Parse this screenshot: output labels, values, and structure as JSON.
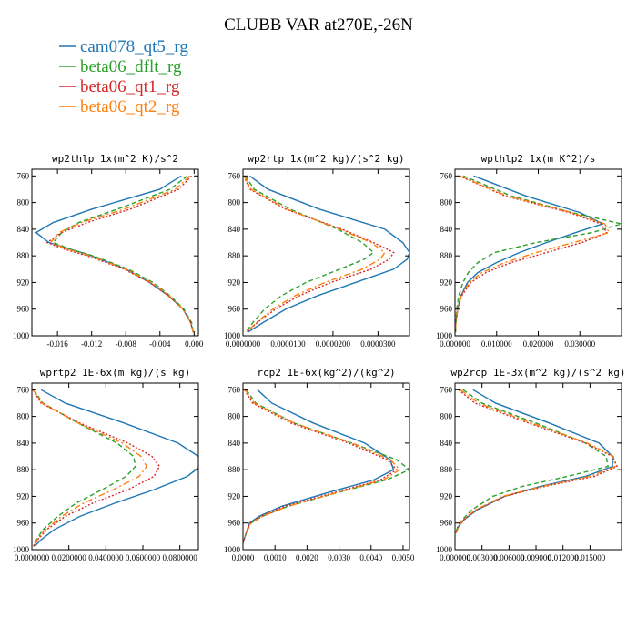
{
  "figure": {
    "title": "CLUBB VAR at270E,-26N"
  },
  "legend": [
    {
      "name": "cam078_qt5_rg",
      "color": "#1f77b4",
      "dash": "solid"
    },
    {
      "name": "beta06_dflt_rg",
      "color": "#2ca02c",
      "dash": "dash"
    },
    {
      "name": "beta06_qt1_rg",
      "color": "#d62728",
      "dash": "dot"
    },
    {
      "name": "beta06_qt2_rg",
      "color": "#ff7f0e",
      "dash": "dashdot"
    }
  ],
  "chart_data": [
    {
      "type": "line",
      "title": "wp2thlp  1x(m^2 K)/s^2",
      "xlim": [
        -0.019,
        0.0005
      ],
      "ylim": [
        1000,
        750
      ],
      "xticks": [
        -0.016,
        -0.012,
        -0.008,
        -0.004,
        0.0
      ],
      "xticklabels": [
        "-0.016",
        "-0.012",
        "-0.008",
        "-0.004",
        "0.000"
      ],
      "yticks": [
        760,
        800,
        840,
        880,
        920,
        960,
        1000
      ],
      "y": [
        760,
        780,
        810,
        830,
        845,
        860,
        870,
        880,
        900,
        920,
        940,
        960,
        980,
        995
      ],
      "series": [
        {
          "name": "cam078_qt5_rg",
          "x": [
            -0.0015,
            -0.004,
            -0.012,
            -0.0165,
            -0.0185,
            -0.017,
            -0.0145,
            -0.012,
            -0.008,
            -0.0052,
            -0.003,
            -0.0013,
            -0.0004,
            -0.0001
          ]
        },
        {
          "name": "beta06_dflt_rg",
          "x": [
            -0.0008,
            -0.0028,
            -0.009,
            -0.0135,
            -0.0155,
            -0.0165,
            -0.0145,
            -0.0118,
            -0.0077,
            -0.0048,
            -0.0028,
            -0.0012,
            -0.0003,
            -0.0001
          ]
        },
        {
          "name": "beta06_qt1_rg",
          "x": [
            -0.0003,
            -0.0018,
            -0.0075,
            -0.0125,
            -0.0155,
            -0.0172,
            -0.0152,
            -0.0125,
            -0.0082,
            -0.0052,
            -0.003,
            -0.0013,
            -0.0004,
            -0.0001
          ]
        },
        {
          "name": "beta06_qt2_rg",
          "x": [
            -0.0005,
            -0.0022,
            -0.0082,
            -0.0132,
            -0.0158,
            -0.0168,
            -0.0148,
            -0.0122,
            -0.008,
            -0.005,
            -0.0029,
            -0.0013,
            -0.0004,
            -0.0001
          ]
        }
      ]
    },
    {
      "type": "line",
      "title": "wp2rtp  1x(m^2 kg)/(s^2 kg)",
      "xlim": [
        0.0,
        3.7e-05
      ],
      "ylim": [
        1000,
        750
      ],
      "xticks": [
        0.0,
        1e-05,
        2e-05,
        3e-05
      ],
      "xticklabels": [
        "0.0000000",
        "0.0000100",
        "0.0000200",
        "0.0000300"
      ],
      "yticks": [
        760,
        800,
        840,
        880,
        920,
        960,
        1000
      ],
      "y": [
        760,
        780,
        810,
        840,
        860,
        875,
        885,
        900,
        920,
        940,
        960,
        980,
        995
      ],
      "series": [
        {
          "name": "cam078_qt5_rg",
          "x": [
            1.5e-06,
            5.5e-06,
            1.7e-05,
            3.15e-05,
            3.55e-05,
            3.7e-05,
            3.65e-05,
            3.35e-05,
            2.5e-05,
            1.65e-05,
            9.5e-06,
            4.5e-06,
            1e-06
          ]
        },
        {
          "name": "beta06_dflt_rg",
          "x": [
            5e-07,
            2.5e-06,
            1.05e-05,
            2.1e-05,
            2.65e-05,
            2.9e-05,
            2.7e-05,
            2.15e-05,
            1.4e-05,
            8.5e-06,
            4.8e-06,
            2.2e-06,
            6e-07
          ]
        },
        {
          "name": "beta06_qt1_rg",
          "x": [
            2e-07,
            1.5e-06,
            9.5e-06,
            2.2e-05,
            2.9e-05,
            3.35e-05,
            3.25e-05,
            2.85e-05,
            1.95e-05,
            1.25e-05,
            7.2e-06,
            3.2e-06,
            8e-07
          ]
        },
        {
          "name": "beta06_qt2_rg",
          "x": [
            3e-07,
            1.8e-06,
            9.8e-06,
            2.15e-05,
            2.85e-05,
            3.15e-05,
            3.05e-05,
            2.65e-05,
            1.82e-05,
            1.15e-05,
            6.6e-06,
            3e-06,
            7e-07
          ]
        }
      ]
    },
    {
      "type": "line",
      "title": "wpthlp2  1x(m K^2)/s",
      "xlim": [
        0.0,
        0.04
      ],
      "ylim": [
        1000,
        750
      ],
      "xticks": [
        0.0,
        0.01,
        0.02,
        0.03
      ],
      "xticklabels": [
        "0.000000",
        "0.010000",
        "0.020000",
        "0.030000"
      ],
      "yticks": [
        760,
        800,
        840,
        880,
        920,
        960,
        1000
      ],
      "y": [
        760,
        790,
        815,
        832,
        845,
        860,
        875,
        890,
        905,
        920,
        940,
        960,
        980,
        995
      ],
      "series": [
        {
          "name": "cam078_qt5_rg",
          "x": [
            0.0045,
            0.017,
            0.03,
            0.0355,
            0.029,
            0.022,
            0.0155,
            0.01,
            0.0055,
            0.003,
            0.0014,
            0.0006,
            0.0002,
            0.0001
          ]
        },
        {
          "name": "beta06_dflt_rg",
          "x": [
            0.002,
            0.0135,
            0.028,
            0.04,
            0.033,
            0.0195,
            0.0095,
            0.0055,
            0.0032,
            0.0019,
            0.0009,
            0.0004,
            0.0002,
            0.0001
          ]
        },
        {
          "name": "beta06_qt1_rg",
          "x": [
            0.001,
            0.012,
            0.0275,
            0.035,
            0.0365,
            0.0305,
            0.022,
            0.0135,
            0.0075,
            0.0038,
            0.0016,
            0.0007,
            0.0002,
            0.0001
          ]
        },
        {
          "name": "beta06_qt2_rg",
          "x": [
            0.0012,
            0.0125,
            0.028,
            0.036,
            0.037,
            0.0285,
            0.0195,
            0.012,
            0.0065,
            0.0034,
            0.0015,
            0.0006,
            0.0002,
            0.0001
          ]
        }
      ]
    },
    {
      "type": "line",
      "title": "wprtp2  1E-6x(m kg)/(s kg)",
      "xlim": [
        0.0,
        0.09
      ],
      "ylim": [
        1000,
        750
      ],
      "xticks": [
        0.0,
        0.02,
        0.04,
        0.06,
        0.08
      ],
      "xticklabels": [
        "0.0000000",
        "0.0200000",
        "0.0400000",
        "0.0600000",
        "0.0800000"
      ],
      "yticks": [
        760,
        800,
        840,
        880,
        920,
        960,
        1000
      ],
      "y": [
        760,
        780,
        810,
        840,
        860,
        875,
        890,
        910,
        930,
        950,
        970,
        985,
        995
      ],
      "series": [
        {
          "name": "cam078_qt5_rg",
          "x": [
            0.005,
            0.018,
            0.05,
            0.079,
            0.09,
            0.091,
            0.084,
            0.066,
            0.045,
            0.026,
            0.012,
            0.005,
            0.0015
          ]
        },
        {
          "name": "beta06_dflt_rg",
          "x": [
            0.001,
            0.006,
            0.025,
            0.046,
            0.055,
            0.056,
            0.051,
            0.038,
            0.024,
            0.014,
            0.006,
            0.0025,
            0.0008
          ]
        },
        {
          "name": "beta06_qt1_rg",
          "x": [
            0.0005,
            0.005,
            0.026,
            0.052,
            0.065,
            0.069,
            0.066,
            0.052,
            0.033,
            0.018,
            0.008,
            0.0032,
            0.001
          ]
        },
        {
          "name": "beta06_qt2_rg",
          "x": [
            0.0008,
            0.0055,
            0.025,
            0.049,
            0.059,
            0.062,
            0.058,
            0.044,
            0.028,
            0.016,
            0.0072,
            0.0028,
            0.0009
          ]
        }
      ]
    },
    {
      "type": "line",
      "title": "rcp2  1E-6x(kg^2)/(kg^2)",
      "xlim": [
        0.0,
        0.0052
      ],
      "ylim": [
        1000,
        750
      ],
      "xticks": [
        0.0,
        0.001,
        0.002,
        0.003,
        0.004,
        0.005
      ],
      "xticklabels": [
        "0.0000",
        "0.0010",
        "0.0020",
        "0.0030",
        "0.0040",
        "0.0050"
      ],
      "yticks": [
        760,
        800,
        840,
        880,
        920,
        960,
        1000
      ],
      "y": [
        760,
        780,
        810,
        840,
        865,
        880,
        895,
        915,
        935,
        950,
        960,
        975,
        990
      ],
      "series": [
        {
          "name": "cam078_qt5_rg",
          "x": [
            0.00045,
            0.0009,
            0.0022,
            0.0038,
            0.0046,
            0.0047,
            0.0041,
            0.0026,
            0.0012,
            0.0005,
            0.0002,
            0.0001,
            0.0
          ]
        },
        {
          "name": "beta06_dflt_rg",
          "x": [
            0.0001,
            0.0004,
            0.0016,
            0.0034,
            0.0048,
            0.0052,
            0.0045,
            0.0029,
            0.0014,
            0.0006,
            0.00025,
            0.0001,
            0.0
          ]
        },
        {
          "name": "beta06_qt1_rg",
          "x": [
            5e-05,
            0.0003,
            0.0015,
            0.0033,
            0.0045,
            0.0048,
            0.0043,
            0.0028,
            0.0013,
            0.00055,
            0.00022,
            0.0001,
            0.0
          ]
        },
        {
          "name": "beta06_qt2_rg",
          "x": [
            7e-05,
            0.00035,
            0.0016,
            0.0034,
            0.0046,
            0.0049,
            0.0044,
            0.0029,
            0.0014,
            0.0006,
            0.00025,
            0.0001,
            0.0
          ]
        }
      ]
    },
    {
      "type": "line",
      "title": "wp2rcp  1E-3x(m^2 kg)/(s^2 kg)",
      "xlim": [
        0.0,
        0.0185
      ],
      "ylim": [
        1000,
        750
      ],
      "xticks": [
        0.0,
        0.003,
        0.006,
        0.009,
        0.012,
        0.015
      ],
      "xticklabels": [
        "0.000000",
        "0.003000",
        "0.006000",
        "0.009000",
        "0.012000",
        "0.015000"
      ],
      "yticks": [
        760,
        800,
        840,
        880,
        920,
        960,
        1000
      ],
      "y": [
        760,
        780,
        810,
        840,
        860,
        875,
        890,
        905,
        920,
        940,
        955,
        965,
        975
      ],
      "series": [
        {
          "name": "cam078_qt5_rg",
          "x": [
            0.002,
            0.0045,
            0.0105,
            0.016,
            0.0175,
            0.0175,
            0.0145,
            0.0095,
            0.0055,
            0.0025,
            0.001,
            0.0004,
            0.0001
          ]
        },
        {
          "name": "beta06_dflt_rg",
          "x": [
            0.0009,
            0.003,
            0.009,
            0.0145,
            0.0168,
            0.017,
            0.0125,
            0.0075,
            0.0042,
            0.0019,
            0.0008,
            0.0003,
            0.0001
          ]
        },
        {
          "name": "beta06_qt1_rg",
          "x": [
            0.0004,
            0.0022,
            0.0082,
            0.0145,
            0.0175,
            0.018,
            0.0155,
            0.01,
            0.0055,
            0.0024,
            0.001,
            0.0004,
            0.0001
          ]
        },
        {
          "name": "beta06_qt2_rg",
          "x": [
            0.0006,
            0.0026,
            0.0085,
            0.0147,
            0.0176,
            0.0178,
            0.015,
            0.0097,
            0.0053,
            0.0023,
            0.0009,
            0.0004,
            0.0001
          ]
        }
      ]
    }
  ]
}
